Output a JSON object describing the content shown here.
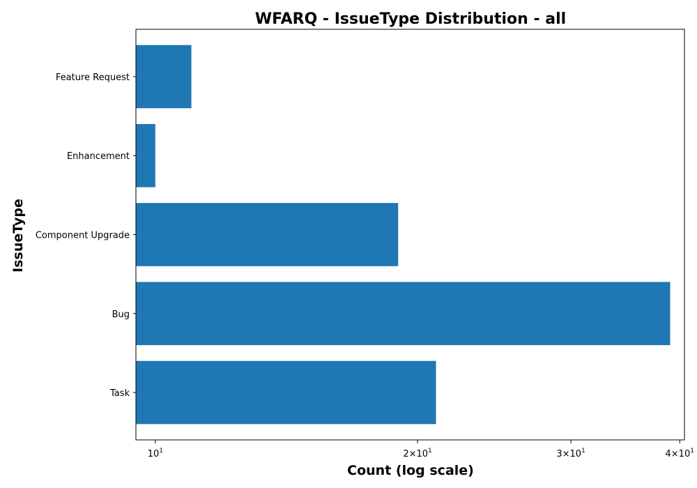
{
  "chart_data": {
    "type": "bar",
    "orientation": "horizontal",
    "title": "WFARQ - IssueType Distribution - all",
    "xlabel": "Count (log scale)",
    "ylabel": "IssueType",
    "xscale": "log",
    "xlim": [
      9.5,
      40.5
    ],
    "categories": [
      "Task",
      "Bug",
      "Component Upgrade",
      "Enhancement",
      "Feature Request"
    ],
    "values": [
      21,
      39,
      19,
      10,
      11
    ],
    "xticks": [
      {
        "value": 10,
        "base": "10",
        "exp": "1",
        "mult": ""
      },
      {
        "value": 20,
        "base": "10",
        "exp": "1",
        "mult": "2×"
      },
      {
        "value": 30,
        "base": "10",
        "exp": "1",
        "mult": "3×"
      },
      {
        "value": 40,
        "base": "10",
        "exp": "1",
        "mult": "4×"
      }
    ],
    "grid": false,
    "bar_color": "#1f77b4"
  }
}
